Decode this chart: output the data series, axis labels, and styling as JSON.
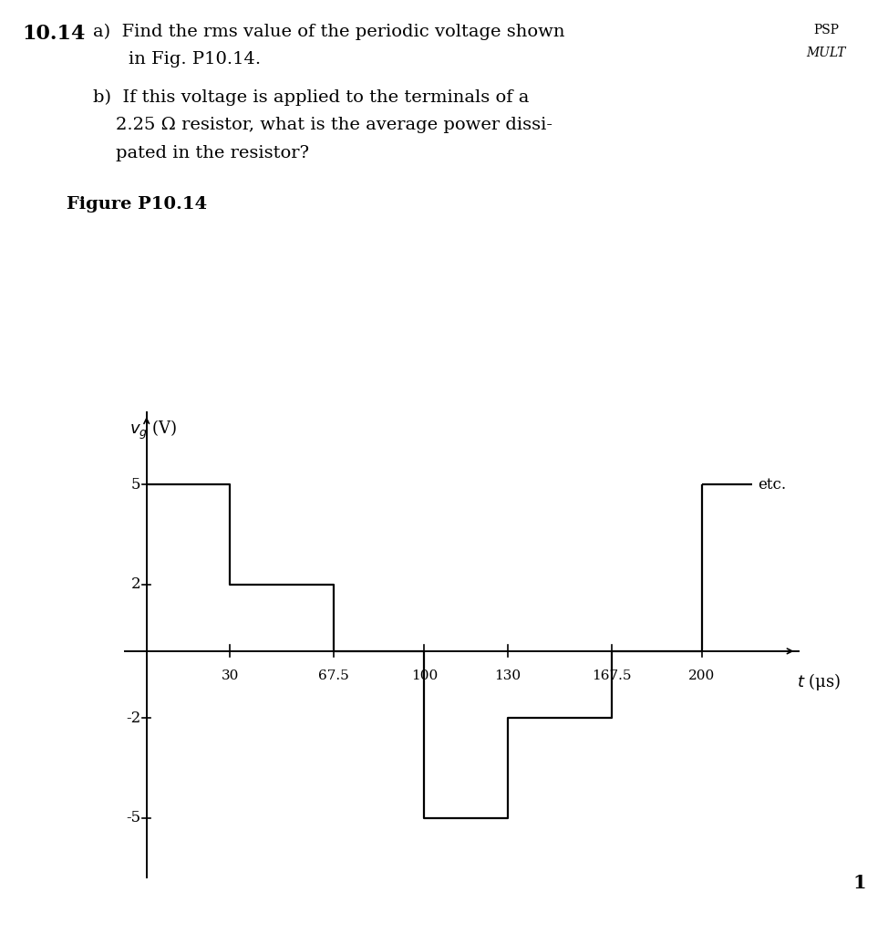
{
  "title_number": "10.14",
  "corner_text_line1": "PSP",
  "corner_text_line2": "MULT",
  "figure_label": "Figure P10.14",
  "ylabel": "$v_g$ (V)",
  "xlabel": "$t$ (μs)",
  "yticks": [
    5,
    2,
    -2,
    -5
  ],
  "xticks": [
    30,
    67.5,
    100,
    130,
    167.5,
    200
  ],
  "xlim": [
    -8,
    235
  ],
  "ylim": [
    -6.8,
    7.2
  ],
  "waveform_t": [
    0,
    30,
    30,
    67.5,
    67.5,
    100,
    100,
    130,
    130,
    167.5,
    167.5,
    200,
    200
  ],
  "waveform_v": [
    5,
    5,
    2,
    2,
    0,
    0,
    -5,
    -5,
    -2,
    -2,
    0,
    0,
    5
  ],
  "etc_extend_t": [
    200,
    218
  ],
  "etc_extend_v": [
    5,
    5
  ],
  "etc_label": "etc.",
  "line_color": "black",
  "bg_color": "white",
  "text_color": "black",
  "font_size_text": 14,
  "font_size_axis_label": 13,
  "font_size_tick": 12,
  "font_size_figure_label": 14,
  "font_size_number": 16,
  "page_number": "1"
}
